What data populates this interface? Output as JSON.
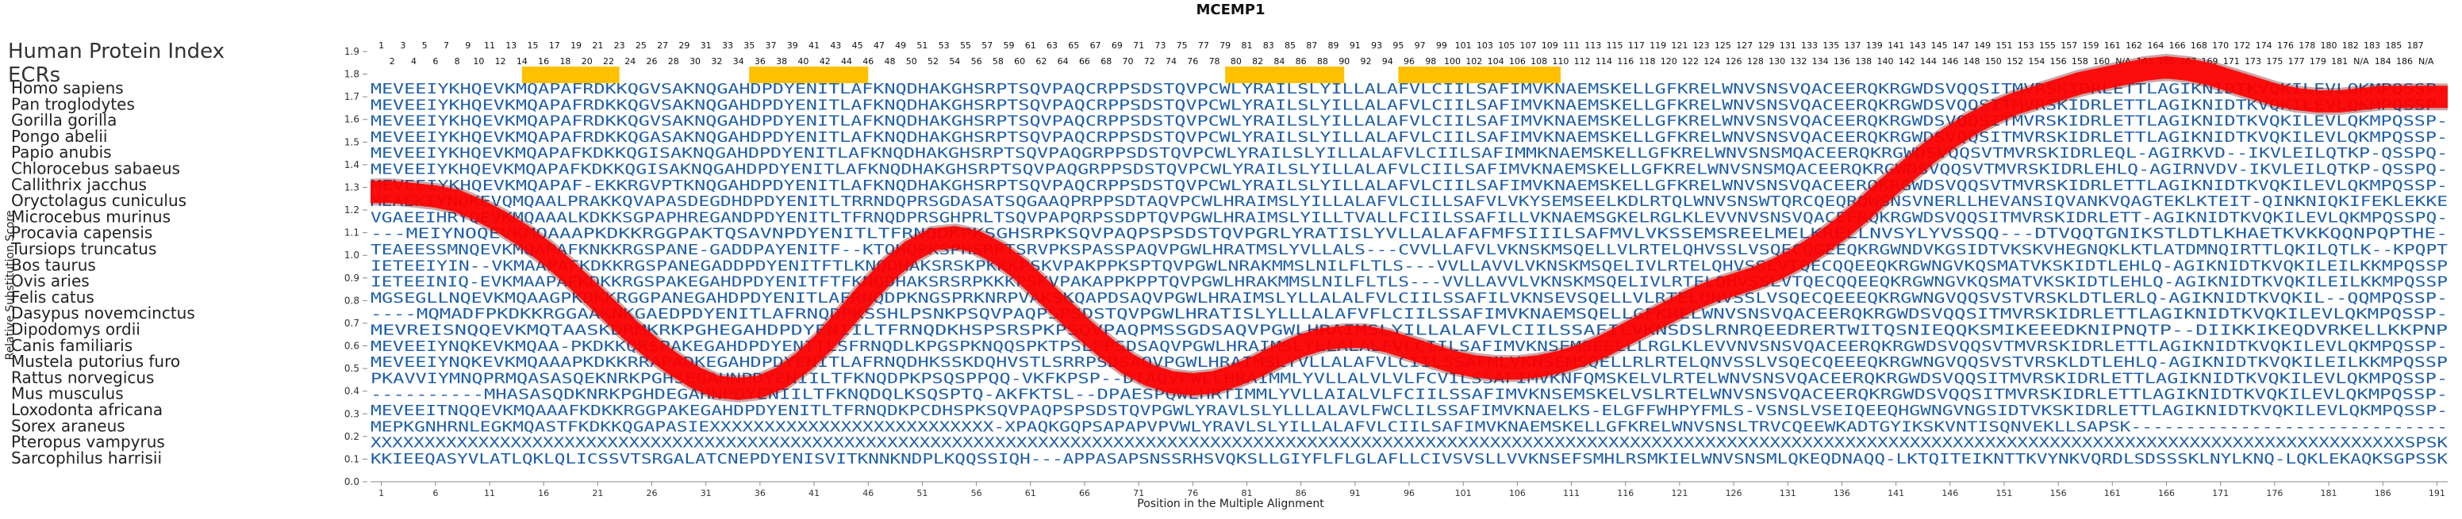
{
  "chart_data": {
    "type": "line",
    "title": "MCEMP1",
    "xlabel": "Position in the Multiple Alignment",
    "ylabel": "Relative Substitution Score",
    "ylim": [
      0.0,
      1.9
    ],
    "xlim": [
      0,
      192
    ],
    "y_ticks": [
      "0.0",
      "0.1",
      "0.2",
      "0.3",
      "0.4",
      "0.5",
      "0.6",
      "0.7",
      "0.8",
      "0.9",
      "1.0",
      "1.1",
      "1.2",
      "1.3",
      "1.4",
      "1.5",
      "1.6",
      "1.7",
      "1.8",
      "1.9"
    ],
    "x_ticks": [
      "1",
      "6",
      "11",
      "16",
      "21",
      "26",
      "31",
      "36",
      "41",
      "46",
      "51",
      "56",
      "61",
      "66",
      "71",
      "76",
      "81",
      "86",
      "91",
      "96",
      "101",
      "106",
      "111",
      "116",
      "121",
      "126",
      "131",
      "136",
      "141",
      "146",
      "151",
      "156",
      "161",
      "166",
      "171",
      "176",
      "181",
      "186",
      "191"
    ],
    "index_label": "Human Protein Index",
    "ecr_label": "ECRs",
    "index_row_top": [
      "1",
      "3",
      "5",
      "7",
      "9",
      "11",
      "13",
      "15",
      "17",
      "19",
      "21",
      "23",
      "25",
      "27",
      "29",
      "31",
      "33",
      "35",
      "37",
      "39",
      "41",
      "43",
      "45",
      "47",
      "49",
      "51",
      "53",
      "55",
      "57",
      "59",
      "61",
      "63",
      "65",
      "67",
      "69",
      "71",
      "73",
      "75",
      "77",
      "79",
      "81",
      "83",
      "85",
      "87",
      "89",
      "91",
      "93",
      "95",
      "97",
      "99",
      "101",
      "103",
      "105",
      "107",
      "109",
      "111",
      "113",
      "115",
      "117",
      "119",
      "121",
      "123",
      "125",
      "127",
      "129",
      "131",
      "133",
      "135",
      "137",
      "139",
      "141",
      "143",
      "145",
      "147",
      "149",
      "151",
      "153",
      "155",
      "157",
      "159",
      "161",
      "162",
      "164",
      "166",
      "168",
      "170",
      "172",
      "174",
      "176",
      "178",
      "180",
      "182",
      "183",
      "185",
      "187"
    ],
    "index_row_bottom": [
      "2",
      "4",
      "6",
      "8",
      "10",
      "12",
      "14",
      "16",
      "18",
      "20",
      "22",
      "24",
      "26",
      "28",
      "30",
      "32",
      "34",
      "36",
      "38",
      "40",
      "42",
      "44",
      "46",
      "48",
      "50",
      "52",
      "54",
      "56",
      "58",
      "60",
      "62",
      "64",
      "66",
      "68",
      "70",
      "72",
      "74",
      "76",
      "78",
      "80",
      "82",
      "84",
      "86",
      "88",
      "90",
      "92",
      "94",
      "96",
      "98",
      "100",
      "102",
      "104",
      "106",
      "108",
      "110",
      "112",
      "114",
      "116",
      "118",
      "120",
      "122",
      "124",
      "126",
      "128",
      "130",
      "132",
      "134",
      "136",
      "138",
      "140",
      "142",
      "144",
      "146",
      "148",
      "150",
      "152",
      "154",
      "156",
      "158",
      "160",
      "N/A",
      "163",
      "165",
      "167",
      "169",
      "171",
      "173",
      "175",
      "177",
      "179",
      "181",
      "N/A",
      "184",
      "186",
      "N/A"
    ],
    "ecr_regions": [
      [
        14,
        23
      ],
      [
        35,
        46
      ],
      [
        79,
        90
      ],
      [
        95,
        110
      ]
    ],
    "series": [
      {
        "name": "Relative Substitution Score",
        "color": "#ff0000",
        "x": [
          0,
          2,
          4,
          6,
          8,
          10,
          12,
          14,
          16,
          18,
          20,
          22,
          24,
          26,
          28,
          30,
          32,
          34,
          36,
          38,
          40,
          42,
          44,
          46,
          48,
          50,
          52,
          54,
          56,
          58,
          60,
          62,
          64,
          66,
          68,
          70,
          72,
          74,
          76,
          78,
          80,
          82,
          84,
          86,
          88,
          90,
          92,
          94,
          96,
          98,
          100,
          102,
          104,
          106,
          108,
          110,
          112,
          114,
          116,
          118,
          120,
          122,
          124,
          126,
          128,
          130,
          132,
          134,
          136,
          138,
          140,
          142,
          144,
          146,
          148,
          150,
          152,
          154,
          156,
          158,
          160,
          162,
          164,
          166,
          168,
          170,
          172,
          174,
          176,
          178,
          180,
          182,
          184,
          186,
          188,
          190,
          192
        ],
        "y": [
          1.28,
          1.28,
          1.27,
          1.26,
          1.24,
          1.2,
          1.15,
          1.09,
          1.02,
          0.94,
          0.85,
          0.76,
          0.67,
          0.59,
          0.52,
          0.46,
          0.42,
          0.41,
          0.42,
          0.46,
          0.53,
          0.62,
          0.73,
          0.84,
          0.94,
          1.02,
          1.07,
          1.08,
          1.06,
          1.01,
          0.94,
          0.85,
          0.76,
          0.67,
          0.59,
          0.52,
          0.47,
          0.44,
          0.43,
          0.44,
          0.47,
          0.51,
          0.56,
          0.6,
          0.63,
          0.64,
          0.64,
          0.62,
          0.59,
          0.56,
          0.53,
          0.51,
          0.5,
          0.5,
          0.51,
          0.53,
          0.56,
          0.6,
          0.65,
          0.7,
          0.75,
          0.8,
          0.84,
          0.87,
          0.9,
          0.94,
          0.99,
          1.05,
          1.12,
          1.2,
          1.29,
          1.37,
          1.45,
          1.52,
          1.58,
          1.63,
          1.67,
          1.7,
          1.73,
          1.76,
          1.78,
          1.8,
          1.82,
          1.83,
          1.82,
          1.8,
          1.77,
          1.74,
          1.71,
          1.69,
          1.68,
          1.68,
          1.69,
          1.7,
          1.7,
          1.7,
          1.7
        ]
      }
    ],
    "species": [
      {
        "name": "Homo sapiens",
        "seq": "MEVEEIYKHQEVKMQAPAFRDKKQGVSAKNQGAHDPDYENITLAFKNQDHAKGHSRPTSQVPAQCRPPSDSTQVPCWLYRAILSLYILLALAFVLCIILSAFIMVKNAEMSKELLGFKRELWNVSNSVQACEERQKRGWDSVQQSITMVRSKIDRLETTLAGIKNIDTKVQKILEVLQKMPQSSP-"
      },
      {
        "name": "Pan troglodytes",
        "seq": "MEVEEIYKHQEVKMQAPAFRDKKQGVSAKNQGAHDPDYENITLAFKNQDHAKGHSRPTSQVPAQCRPPSDSTQVPCWLYRAILSLYILLALAFVLCIILSAFIMVKNAEMSKELLGFKRELWNVSNSVQACEERQKRGWDSVQQSITMVRSKIDRLETTLAGIKNIDTKVQKILEVLQKMPQSSP-"
      },
      {
        "name": "Gorilla gorilla",
        "seq": "MEVEEIYKHQEVKMQAPAFRDKKQGVSAKNQGAHDPDYENITLAFKNQDHAKGHSRPTSQVPAQCRPPSDSTQVPCWLYRAILSLYILLALAFVLCIILSAFIMVKNAEMSKELLGFKRELWNVSNSVQACEERQKRGWDSVQQSITMVRSKIDRLETTLAGIKNIDTKVQKILEVLQKMPQSSP-"
      },
      {
        "name": "Pongo abelii",
        "seq": "MEVEEIYKHQEVKMQAPAFRDKKQGASAKNQGAHDPDYENITLAFKNQDHAKGHSRPTSQVPAQCRPPSDSTQVPCWLYRAILSLYILLALAFVLCIILSAFIMVKNAEMSKELLGFKRELWNVSNSVQACEERQKRGWDSVQQSITMVRSKIDRLETTLAGIKNIDTKVQKILEVLQKMPQSSP-"
      },
      {
        "name": "Papio anubis",
        "seq": "MEVEEIYKHQEVKMQAPAFKDKKQGISAKNQGAHDPDYENITLAFKNQDHAKGHSRPTSQVPAQGRPPSDSTQVPCWLYRAILSLYILLALAFVLCIILSAFIMMKNAEMSKELLGFKRELWNVSNSMQACEERQKRGWDSVQQSVTMVRSKIDRLEQL-AGIRKVD--IKVLEILQTKP-QSSPQ-"
      },
      {
        "name": "Chlorocebus sabaeus",
        "seq": "MEVEEIYKHQEVKMQAPAFKDKKQGISAKNQGAHDPDYENITLAFKNQDHAKGHSRPTSQVPAQGRPPSDSTQVPCWLYRAILSLYILLALAFVLCIILSAFIMVKNAEMSKELLGFKRELWNVSNSMQACEERQKRGWDSVQQSVTMVRSKIDRLEHLQ-AGIRNVDV-IKVLEILQTKP-QSSPQ-"
      },
      {
        "name": "Callithrix jacchus",
        "seq": "MEVEEIYKHQEVKMQAPAF-EKKRGVPTKNQGAHDPDYENITLAFKNQDHAKGHSRPTSQVPAQCRPPSDSTQVPCWLYRAILSLYILLALAFVLCIILSAFIMVKNAEMSKELLGFKRELWNVSNSVQACEERQKRGWDSVQQSVTMVRSKIDRLETTLAGIKNIDTKVQKILEVLQKMPQSSP-"
      },
      {
        "name": "Oryctolagus cuniculus",
        "seq": "MEAEKIYNQKEVQMQAALPRAKKQVAPASDEGDHDPDYENITLTRRNDQPRSGDASATSQGAAQPRPPSDTAQVPCWLHRAIMSLYILLALAFVLCILLSAFVLVKYSEMSEELKDLRTQLWNVSNSWTQRCQEQRQWSNSVNERLLHEVANSIQVANKVQAGTEKLKTEIT-QINKNIQKIFEKLEKKE"
      },
      {
        "name": "Microcebus murinus",
        "seq": "VGAEEIHRYQEVKMQAAALKDKKSGPAPHREGANDPDYENITLTFRNQDPRSGHPRLTSQVPAPQRPSSDPTQVPGWLHRAIMSLYILLTVALLFCIILSSAFILLVKNAEMSGKELRGLKLEVVNVSNSVQACEERQKRGWDSVQQSITMVRSKIDRLETT-AGIKNIDTKVQKILEVLQKMPQSSPQ-"
      },
      {
        "name": "Procavia capensis",
        "seq": "---MEIYNOQEVKMQAAAPKDKKRGGPAKTQSAVNPDYENITLTFRNQDKPKSGHSRPKSQVPAQPSPSDSTQVPGRLYRATISLYVLLALAFAFMFSIIILSAFMVLVKSSEMSREELMELKRELLNVSYLYVSSQQ---DTVQQTGNIKSTLDTLKHAETKVKKQQNPQPTHE-"
      },
      {
        "name": "Tursiops truncatus",
        "seq": "TEAEESSMNQEVKMQAPAFKNKKRGSPANE-GADDPAYENITF--KTQHQPKSPHSRPTSRVPKSPASSPAQVPGWLHRATMSLYVLLALS---CVVLLAFVLVKNSKMSQELLVLRTELQHVSSLVSQECQGEEQKRGWNDVKGSIDTVKSKVHEGNQKLKTLATDMNQIRTTLQKILQTLK--KPQPT"
      },
      {
        "name": "Bos taurus",
        "seq": "IETEEIYIN--VKMAAPAFKDKKRGSPANEGADDPDYENITFTLKNQDHAKSRSKPKKKPSKVPAKPPKSPTQVPGWLNRAKMMSLNILFLTLS---VVLLAVVLVKNSKMSQELIVLRTELQHVSSLVTQECQQEEQKRGWNGVKQSMATVKSKIDTLEHLQ-AGIKNIDTKVQKILEILKKMPQSSP"
      },
      {
        "name": "Ovis aries",
        "seq": "IETEEINIQ-EVKMAAPAFKDKKRGSPAKEGAHDPDYENITFTFKNQDHAKSRSRPKKKPSKVPAKAPPKPPTQVPGWLHRAKMMSLNILFLTLS---VVLLAVVLVKNSKMSQELIVLRTELQHVSSLVTQECQQEEQKRGWNGVKQSMATVKSKIDTLEHLQ-AGIKNIDTKVQKILEILKKMPQSSP"
      },
      {
        "name": "Felis catus",
        "seq": "MGSEGLLNQEVKMQAAGPKDKKRGGPANEGAHDPDYENITLAFRNQDPKNGSPRKNRPVAKSKQAPDSAQVPGWLHRAIMSLYLLALALFVLCIILSSAFILVKNSEVSQELLVLRTELQNVSSLVSQECQEEEQKRGWNGVQQSVSTVRSKLDTLERLQ-AGIKNIDTKVQKIL--QQMPQSSP-"
      },
      {
        "name": "Dasypus novemcinctus",
        "seq": "----MQMADFPKDKKRGGAAKNKGAEDPDYENITLAFRNQDPKSSHLPSNKPSQVPAQPSPSDSTQVPGWLHRATISLYLLLALAFVFLCIILSSAFIMVKNAEMSQELLGFKRELWNVSNSVQACEERQKRGWDSVQQSITMVRSKIDRLETTLAGIKNIDTKVQKILEVLQKMPQSSP-"
      },
      {
        "name": "Dipodomys ordii",
        "seq": "MEVREISNQQEVKMQTAASKDRMKRKPGHEGAHDPDYENIILTFRNQDKHSPSRSPKPSQVPAQPMSSGDSAQVPGWLHRAIMSLYILLALAFVLCIILSSAFILVKNSDSLRNRQEEDRERTWITQSNIEQQKSMIKEEEDKNIPNQTP--DIIKKIKEQDVRKELLKKPNP"
      },
      {
        "name": "Canis familiaris",
        "seq": "MEVEEIYNQKEVKMQAA-PKDKKQRSPAKEGAHDPDYENITLSFRNQDLKPGSPKNQQSPKTPSLPPSDSAQVPGWLHRAIMSLYLLALALFVLCIILSAFIMVKNSEMSEELLLRGLKLEVVNVSNSVQACEERQKRGWDSVQQSVTMVRSKIDRLETTLAGIKNIDTKVQKILEVLQKMPQSSP-"
      },
      {
        "name": "Mustela putorius furo",
        "seq": "MEVEEIYNQKEVKMQAAAPKDKKRRAPADKEGAHDPDYENITLAFRNQDHKSSKDQHVSTLSRRPSDSAQVPGWLHRAIMSLYVLLALAFVLCIILSSAFMLVKNSEMSQELLRLRTELQNVSSLVSQECQEEEQKRGWNGVQQSVSTVRSKLDTLEHLQ-AGIKNIDTKVQKILEILKKMPQSSP"
      },
      {
        "name": "Rattus norvegicus",
        "seq": "PKAVVIYMNQPRMQASASQEKNRKPGHSEGAHNPDYENIILTFKNQDPKPSQSPPQQ-VKFKPSP--DTAQVPWLLHRAIMMLYVLLALVLVLFCVILSSAFIMVKNFQMSKELVLRTELWNVSNSVQACEERQKRGWDSVQQSITMVRSKIDRLETTLAGIKNIDTKVQKILEVLQKMPQSSP-"
      },
      {
        "name": "Mus musculus",
        "seq": "----------MHASASQDKNRKPGHDEGAHNPDYENIILTFKNQDQLKSQSPTQ-AKFKTSL--DPAESPQWLHRTIMMLYVLLAIALVLFCIILSSAFIMVKNSEMSKELVSLRTELWNVSNSVQACEERQKRGWDSVQQSITMVRSKIDRLETTLAGIKNIDTKVQKILEVLQKMPQSSP-"
      },
      {
        "name": "Loxodonta africana",
        "seq": "MEVEEITNQQEVKMQAAAFKDKKRGGPAKEGAHDPDYENITLTFRNQDKPCDHSPKSQVPAQPSPSDSTQVPGWLYRAVLSLYLLLALAVLFWCLILSSAFIMVKNAELKS-ELGFFWHPYFMLS-VSNSLVSEIQEEQHGWNGVNGSIDTVKSKIDRLETTLAGIKNIDTKVQKILEVLQKMPQSSP-"
      },
      {
        "name": "Sorex araneus",
        "seq": "MEPKGNHRNLEGKMQASTFKDKKQGAPASIEXXXXXXXXXXXXXXXXXXXXXXXXXX-XPAQKGQPSAPAPVPVWLYRAVLSLYILLALAFVLCIILSAFIMVKNAEMSKELLGFKRELWNVSNSLTRVCQEEWKADTGYIKSKVNTISQNVEKLLSAPSK-----------------------------"
      },
      {
        "name": "Pteropus vampyrus",
        "seq": "XXXXXXXXXXXXXXXXXXXXXXXXXXXXXXXXXXXXXXXXXXXXXXXXXXXXXXXXXXXXXXXXXXXXXXXXXXXXXXXXXXXXXXXXXXXXXXXXXXXXXXXXXXXXXXXXXXXXXXXXXXXXXXXXXXXXXXXXXXXXXXXXXXXXXXXXXXXXXXXXXXXXXXXXXXXXXXXXXXXXXXXXXXXXXSPSK"
      },
      {
        "name": "Sarcophilus harrisii",
        "seq": "KKIEEQASYVLATLQKLQLICSSVTSRGALATCNEPDYENISVITKNNKNDPLKQQSSIQH---APPASAPSNSSRHSVQKSLLGIYFLFLGLAFLLCIVSVSLLVVKNSEFSMHLRSMKIELWNVSNSMLQKEQDNAQQ-LKTQITEIKNTTKVYNKVQRDLSDSSSKLNYLKNQ-LQKLEKAQKSGPSSK"
      }
    ]
  }
}
